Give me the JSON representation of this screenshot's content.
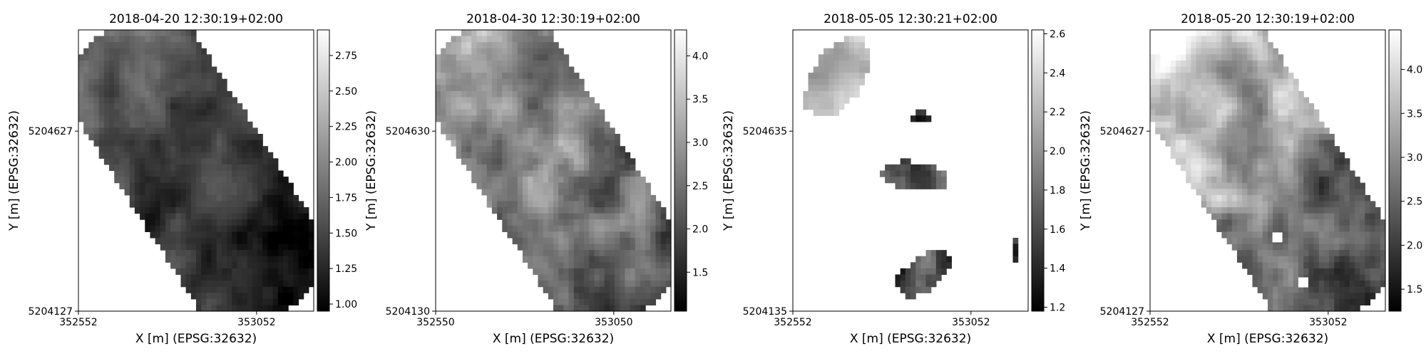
{
  "figure": {
    "background": "#ffffff"
  },
  "chart_data": [
    {
      "type": "heatmap",
      "title": "2018-04-20 12:30:19+02:00",
      "xlabel": "X [m] (EPSG:32632)",
      "ylabel": "Y [m] (EPSG:32632)",
      "xticks": [
        "352552",
        "353052"
      ],
      "yticks": [
        "5204127",
        "5204627"
      ],
      "colormap": "gray",
      "colorbar": {
        "ticks": [
          "1.00",
          "1.25",
          "1.50",
          "1.75",
          "2.00",
          "2.25",
          "2.50",
          "2.75"
        ],
        "vmin": 0.95,
        "vmax": 2.93
      },
      "coverage": "full"
    },
    {
      "type": "heatmap",
      "title": "2018-04-30 12:30:19+02:00",
      "xlabel": "X [m] (EPSG:32632)",
      "ylabel": "Y [m] (EPSG:32632)",
      "xticks": [
        "352550",
        "353050"
      ],
      "yticks": [
        "5204130",
        "5204630"
      ],
      "colormap": "gray",
      "colorbar": {
        "ticks": [
          "1.5",
          "2.0",
          "2.5",
          "3.0",
          "3.5",
          "4.0"
        ],
        "vmin": 1.05,
        "vmax": 4.3
      },
      "coverage": "full"
    },
    {
      "type": "heatmap",
      "title": "2018-05-05 12:30:21+02:00",
      "xlabel": "X [m] (EPSG:32632)",
      "ylabel": "Y [m] (EPSG:32632)",
      "xticks": [
        "352552",
        "353052"
      ],
      "yticks": [
        "5204135",
        "5204635"
      ],
      "colormap": "gray",
      "colorbar": {
        "ticks": [
          "1.2",
          "1.4",
          "1.6",
          "1.8",
          "2.0",
          "2.2",
          "2.4",
          "2.6"
        ],
        "vmin": 1.18,
        "vmax": 2.62
      },
      "coverage": "patchy"
    },
    {
      "type": "heatmap",
      "title": "2018-05-20 12:30:19+02:00",
      "xlabel": "X [m] (EPSG:32632)",
      "ylabel": "Y [m] (EPSG:32632)",
      "xticks": [
        "352552",
        "353052"
      ],
      "yticks": [
        "5204127",
        "5204627"
      ],
      "colormap": "gray",
      "colorbar": {
        "ticks": [
          "1.5",
          "2.0",
          "2.5",
          "3.0",
          "3.5",
          "4.0"
        ],
        "vmin": 1.25,
        "vmax": 4.45
      },
      "coverage": "full"
    }
  ]
}
